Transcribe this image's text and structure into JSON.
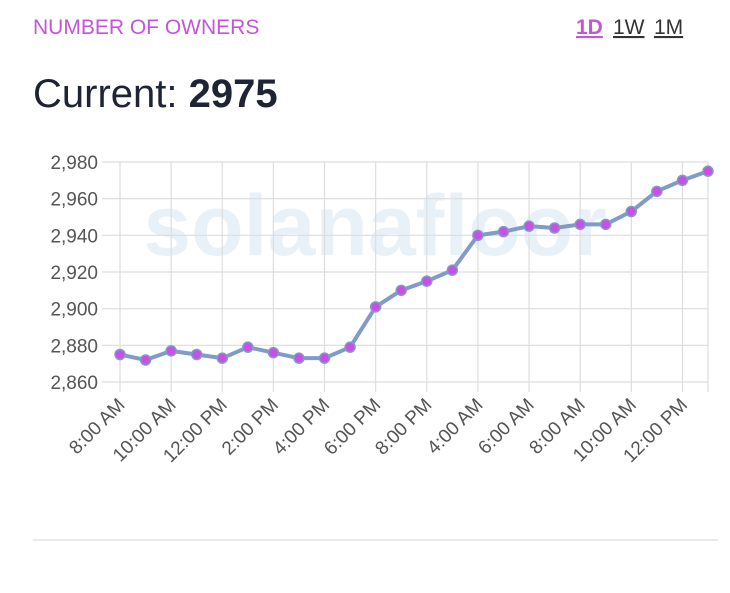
{
  "header": {
    "title": "NUMBER OF OWNERS",
    "tabs": [
      "1D",
      "1W",
      "1M"
    ],
    "current_label": "Current:",
    "current_value": "2975"
  },
  "watermark": "solanafloor",
  "chart_data": {
    "type": "line",
    "categories": [
      "8:00 AM",
      null,
      "10:00 AM",
      null,
      "12:00 PM",
      null,
      "2:00 PM",
      null,
      "4:00 PM",
      null,
      "6:00 PM",
      null,
      "8:00 PM",
      null,
      "4:00 AM",
      null,
      "6:00 AM",
      null,
      "8:00 AM",
      null,
      "10:00 AM",
      null,
      "12:00 PM",
      null
    ],
    "series": [
      {
        "name": "Owners",
        "color": "#7f9cc9",
        "marker_color": "#c94fe6",
        "values": [
          2875,
          2872,
          2877,
          2875,
          2873,
          2879,
          2876,
          2873,
          2873,
          2879,
          2901,
          2910,
          2915,
          2921,
          2940,
          2942,
          2945,
          2944,
          2946,
          2946,
          2953,
          2964,
          2970,
          2975
        ]
      }
    ],
    "ylim": [
      2860,
      2980
    ],
    "yticks": [
      {
        "value": 2860,
        "label": "2,860"
      },
      {
        "value": 2880,
        "label": "2,880"
      },
      {
        "value": 2900,
        "label": "2,900"
      },
      {
        "value": 2920,
        "label": "2,920"
      },
      {
        "value": 2940,
        "label": "2,940"
      },
      {
        "value": 2960,
        "label": "2,960"
      },
      {
        "value": 2980,
        "label": "2,980"
      }
    ],
    "grid": true
  }
}
